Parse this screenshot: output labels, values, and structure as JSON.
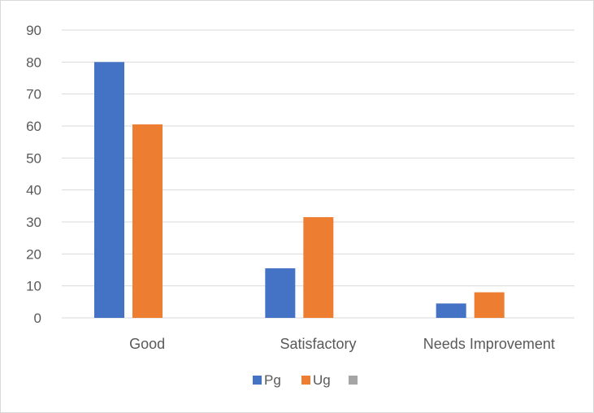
{
  "chart_data": {
    "type": "bar",
    "categories": [
      "Good",
      "Satisfactory",
      "Needs Improvement"
    ],
    "series": [
      {
        "name": "Pg",
        "color": "#4472c4",
        "values": [
          80,
          15.5,
          4.5
        ]
      },
      {
        "name": "Ug",
        "color": "#ed7d31",
        "values": [
          60.5,
          31.5,
          8
        ]
      },
      {
        "name": "",
        "color": "#a5a5a5",
        "values": [
          0,
          0,
          0
        ]
      }
    ],
    "yticks": [
      "0",
      "10",
      "20",
      "30",
      "40",
      "50",
      "60",
      "70",
      "80",
      "90"
    ],
    "ylim": [
      0,
      90
    ],
    "grid": true,
    "legend": "bottom",
    "title": "",
    "xlabel": "",
    "ylabel": ""
  }
}
